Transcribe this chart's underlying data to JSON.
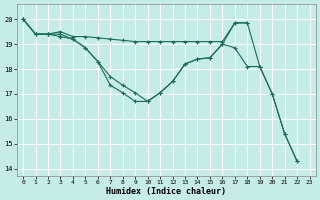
{
  "xlabel": "Humidex (Indice chaleur)",
  "xlim": [
    -0.5,
    23.5
  ],
  "ylim": [
    13.7,
    20.6
  ],
  "yticks": [
    14,
    15,
    16,
    17,
    18,
    19,
    20
  ],
  "xticks": [
    0,
    1,
    2,
    3,
    4,
    5,
    6,
    7,
    8,
    9,
    10,
    11,
    12,
    13,
    14,
    15,
    16,
    17,
    18,
    19,
    20,
    21,
    22,
    23
  ],
  "bg_color": "#c5ece6",
  "grid_color": "#ffffff",
  "line_color": "#1a6b5a",
  "lines": [
    {
      "x": [
        0,
        1,
        2,
        3,
        4,
        5,
        6,
        7,
        8,
        9,
        10,
        11,
        12,
        13,
        14,
        15,
        16,
        17,
        18
      ],
      "y": [
        20.0,
        19.4,
        19.4,
        19.5,
        19.3,
        19.3,
        19.25,
        19.2,
        19.15,
        19.1,
        19.1,
        19.1,
        19.1,
        19.1,
        19.1,
        19.1,
        19.1,
        19.85,
        19.85
      ]
    },
    {
      "x": [
        0,
        1,
        2,
        3,
        4,
        5,
        6,
        7,
        8,
        9,
        10,
        11,
        12,
        13,
        14,
        15,
        16,
        17,
        18,
        19,
        20,
        21,
        22,
        23
      ],
      "y": [
        20.0,
        19.4,
        19.4,
        19.4,
        19.2,
        18.85,
        18.3,
        17.7,
        17.35,
        17.05,
        16.7,
        17.05,
        17.5,
        18.2,
        18.4,
        18.45,
        19.0,
        18.85,
        18.1,
        18.1,
        17.0,
        15.4,
        14.3,
        null
      ]
    },
    {
      "x": [
        0,
        1,
        2,
        3,
        4,
        5,
        6,
        7,
        8,
        9,
        10,
        11,
        12,
        13,
        14,
        15,
        16,
        17,
        18,
        19,
        20,
        21,
        22,
        23
      ],
      "y": [
        20.0,
        19.4,
        19.4,
        19.3,
        19.2,
        18.85,
        18.3,
        17.35,
        17.05,
        16.7,
        16.7,
        17.05,
        17.5,
        18.2,
        18.4,
        18.45,
        19.0,
        19.85,
        19.85,
        18.1,
        17.0,
        15.4,
        14.3,
        null
      ]
    }
  ]
}
